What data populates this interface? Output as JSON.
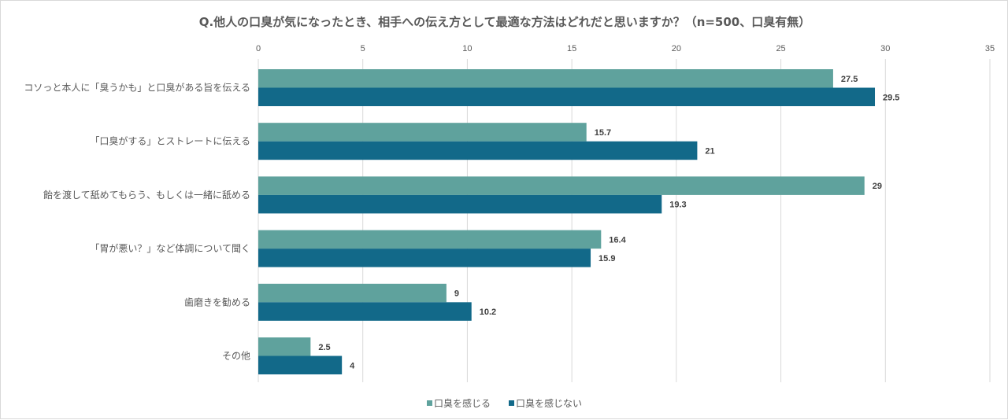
{
  "chart_data": {
    "type": "bar",
    "orientation": "horizontal",
    "title": "Q.他人の口臭が気になったとき、相手への伝え方として最適な方法はどれだと思いますか？（n=500、口臭有無）",
    "categories": [
      "コソっと本人に「臭うかも」と口臭がある旨を伝える",
      "「口臭がする」とストレートに伝える",
      "飴を渡して舐めてもらう、もしくは一緒に舐める",
      "「胃が悪い？」など体調について聞く",
      "歯磨きを勧める",
      "その他"
    ],
    "series": [
      {
        "name": "口臭を感じる",
        "color": "#5fa29d",
        "values": [
          27.5,
          15.7,
          29,
          16.4,
          9,
          2.5
        ]
      },
      {
        "name": "口臭を感じない",
        "color": "#126989",
        "values": [
          29.5,
          21,
          19.3,
          15.9,
          10.2,
          4
        ]
      }
    ],
    "xlim": [
      0,
      35
    ],
    "xticks": [
      0,
      5,
      10,
      15,
      20,
      25,
      30,
      35
    ],
    "xaxis_position": "top",
    "grid": true,
    "legend_position": "bottom"
  }
}
